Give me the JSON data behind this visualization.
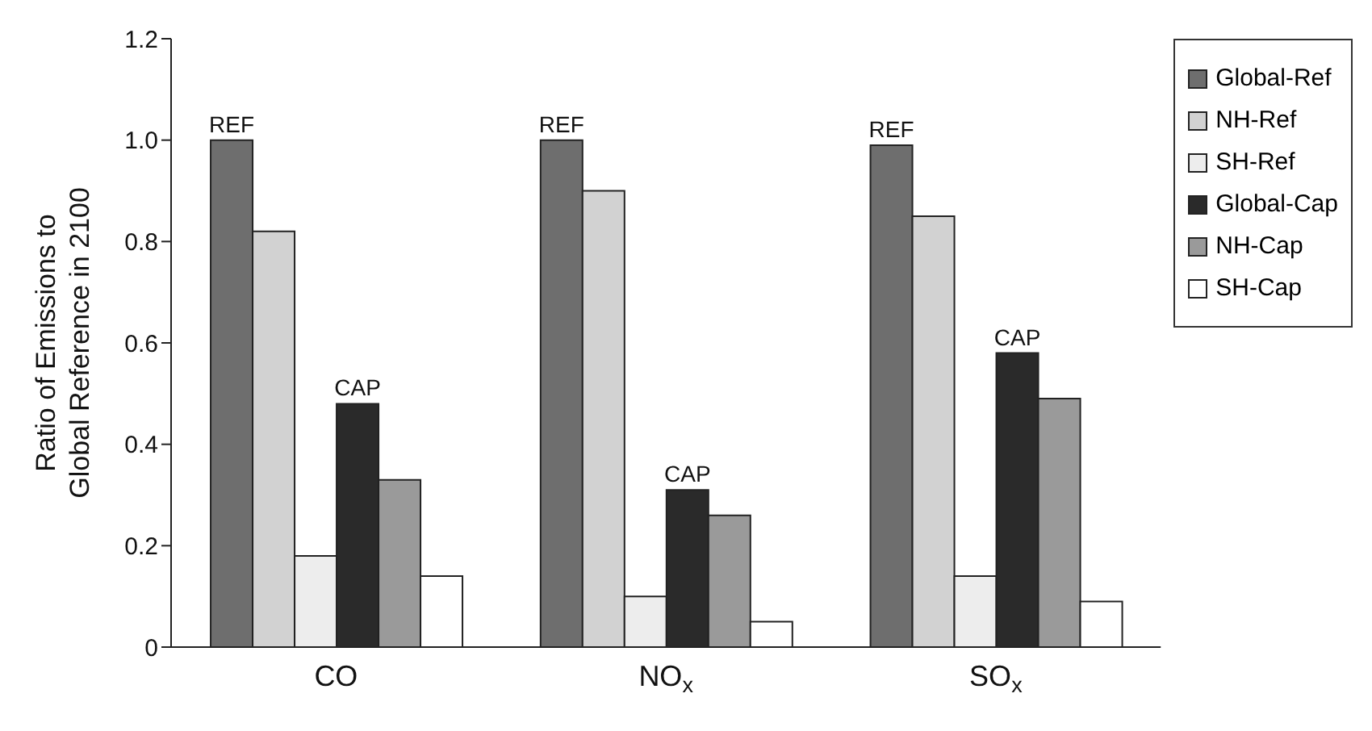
{
  "chart_data": {
    "type": "bar",
    "ylabel": "Ratio of Emissions to Global Reference in 2100",
    "categories": [
      "CO",
      "NO$_{x}$",
      "SO$_{x}$"
    ],
    "series": [
      {
        "name": "Global-Ref",
        "color": "#6e6e6e",
        "values": [
          1.0,
          1.0,
          0.99
        ]
      },
      {
        "name": "NH-Ref",
        "color": "#d2d2d2",
        "values": [
          0.82,
          0.9,
          0.85
        ]
      },
      {
        "name": "SH-Ref",
        "color": "#ededed",
        "values": [
          0.18,
          0.1,
          0.14
        ]
      },
      {
        "name": "Global-Cap",
        "color": "#2a2a2a",
        "values": [
          0.48,
          0.31,
          0.58
        ]
      },
      {
        "name": "NH-Cap",
        "color": "#9a9a9a",
        "values": [
          0.33,
          0.26,
          0.49
        ]
      },
      {
        "name": "SH-Cap",
        "color": "#ffffff",
        "values": [
          0.14,
          0.05,
          0.09
        ]
      }
    ],
    "annotations": [
      "REF",
      "REF",
      "REF",
      {
        "text": "CAP",
        "x": "CO",
        "y": 0.48
      },
      {
        "text": "CAP",
        "x": "NO$_{x}$",
        "y": 0.31
      },
      {
        "text": "CAP",
        "x": "SO$_{x}$",
        "y": 0.58
      }
    ],
    "ylim": [
      0,
      1.2
    ],
    "yticks": [
      0,
      0.2,
      0.4,
      0.6,
      0.8,
      {
        "value": 1,
        "label": "1.0"
      },
      1.2
    ],
    "grid": false,
    "legend": "right"
  }
}
